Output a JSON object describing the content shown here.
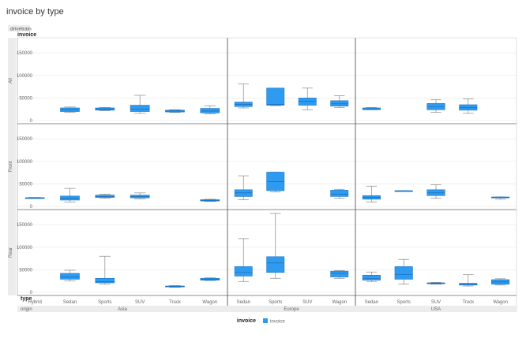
{
  "title": "invoice by type",
  "legend": {
    "title": "invoice",
    "items": [
      {
        "label": "invoice",
        "color": "#2e9bf0"
      }
    ]
  },
  "labels": {
    "row_var": "drivetrain",
    "col_var": "origin",
    "y_axis": "invoice",
    "x_axis": "type"
  },
  "colors": {
    "box": "#2e9bf0",
    "box_stroke": "#1b76c4",
    "grid": "#e8e8e8",
    "band": "#ececec"
  },
  "chart_data": {
    "type": "boxplot",
    "title": "invoice by type",
    "ylabel": "invoice",
    "xlabel": "type",
    "ylim": [
      0,
      180000
    ],
    "yticks": [
      0,
      50000,
      100000,
      150000
    ],
    "grid": true,
    "legend_position": "bottom",
    "row_facets": [
      "All",
      "Front",
      "Rear"
    ],
    "column_facets": [
      {
        "name": "Asia",
        "categories": [
          "Hybrid",
          "Sedan",
          "Sports",
          "SUV",
          "Truck",
          "Wagon"
        ]
      },
      {
        "name": "Europe",
        "categories": [
          "Sedan",
          "Sports",
          "SUV",
          "Wagon"
        ]
      },
      {
        "name": "USA",
        "categories": [
          "Sedan",
          "Sports",
          "SUV",
          "Truck",
          "Wagon"
        ]
      }
    ],
    "boxes": [
      {
        "row": "All",
        "origin": "Asia",
        "type": "Sedan",
        "min": 18000,
        "q1": 20000,
        "median": 24000,
        "q3": 28000,
        "max": 30000
      },
      {
        "row": "All",
        "origin": "Asia",
        "type": "Sports",
        "min": 22000,
        "q1": 23000,
        "median": 25000,
        "q3": 28000,
        "max": 29000
      },
      {
        "row": "All",
        "origin": "Asia",
        "type": "SUV",
        "min": 16000,
        "q1": 20000,
        "median": 25000,
        "q3": 34000,
        "max": 56000
      },
      {
        "row": "All",
        "origin": "Asia",
        "type": "Truck",
        "min": 18000,
        "q1": 19000,
        "median": 21000,
        "q3": 23000,
        "max": 24000
      },
      {
        "row": "All",
        "origin": "Asia",
        "type": "Wagon",
        "min": 15000,
        "q1": 17000,
        "median": 21000,
        "q3": 27000,
        "max": 33000
      },
      {
        "row": "All",
        "origin": "Europe",
        "type": "Sedan",
        "min": 28000,
        "q1": 31000,
        "median": 36000,
        "q3": 41000,
        "max": 81000
      },
      {
        "row": "All",
        "origin": "Europe",
        "type": "Sports",
        "min": 33000,
        "q1": 34000,
        "median": 36000,
        "q3": 72000,
        "max": 72000
      },
      {
        "row": "All",
        "origin": "Europe",
        "type": "SUV",
        "min": 24000,
        "q1": 34000,
        "median": 43000,
        "q3": 50000,
        "max": 72000
      },
      {
        "row": "All",
        "origin": "Europe",
        "type": "Wagon",
        "min": 29000,
        "q1": 32000,
        "median": 37000,
        "q3": 44000,
        "max": 55000
      },
      {
        "row": "All",
        "origin": "USA",
        "type": "Sedan",
        "min": 24000,
        "q1": 24000,
        "median": 26000,
        "q3": 28000,
        "max": 29000
      },
      {
        "row": "All",
        "origin": "USA",
        "type": "SUV",
        "min": 18000,
        "q1": 24000,
        "median": 31000,
        "q3": 38000,
        "max": 46000
      },
      {
        "row": "All",
        "origin": "USA",
        "type": "Truck",
        "min": 16000,
        "q1": 23000,
        "median": 29000,
        "q3": 35000,
        "max": 48000
      },
      {
        "row": "Front",
        "origin": "Asia",
        "type": "Hybrid",
        "min": 18000,
        "q1": 18500,
        "median": 19000,
        "q3": 19500,
        "max": 20000
      },
      {
        "row": "Front",
        "origin": "Asia",
        "type": "Sedan",
        "min": 10000,
        "q1": 14000,
        "median": 18000,
        "q3": 23000,
        "max": 40000
      },
      {
        "row": "Front",
        "origin": "Asia",
        "type": "Sports",
        "min": 18000,
        "q1": 20000,
        "median": 22000,
        "q3": 25000,
        "max": 27000
      },
      {
        "row": "Front",
        "origin": "Asia",
        "type": "SUV",
        "min": 17000,
        "q1": 19000,
        "median": 22000,
        "q3": 25000,
        "max": 30000
      },
      {
        "row": "Front",
        "origin": "Asia",
        "type": "Wagon",
        "min": 11000,
        "q1": 12000,
        "median": 13000,
        "q3": 15000,
        "max": 16000
      },
      {
        "row": "Front",
        "origin": "Europe",
        "type": "Sedan",
        "min": 15000,
        "q1": 22000,
        "median": 30000,
        "q3": 37000,
        "max": 68000
      },
      {
        "row": "Front",
        "origin": "Europe",
        "type": "Sports",
        "min": 32000,
        "q1": 35000,
        "median": 55000,
        "q3": 76000,
        "max": 76000
      },
      {
        "row": "Front",
        "origin": "Europe",
        "type": "Wagon",
        "min": 18000,
        "q1": 22000,
        "median": 27000,
        "q3": 36000,
        "max": 38000
      },
      {
        "row": "Front",
        "origin": "USA",
        "type": "Sedan",
        "min": 10000,
        "q1": 16000,
        "median": 20000,
        "q3": 24000,
        "max": 45000
      },
      {
        "row": "Front",
        "origin": "USA",
        "type": "Sports",
        "min": 34000,
        "q1": 34000,
        "median": 34500,
        "q3": 35000,
        "max": 35000
      },
      {
        "row": "Front",
        "origin": "USA",
        "type": "SUV",
        "min": 18000,
        "q1": 24000,
        "median": 30000,
        "q3": 37000,
        "max": 48000
      },
      {
        "row": "Front",
        "origin": "USA",
        "type": "Wagon",
        "min": 16000,
        "q1": 19000,
        "median": 20000,
        "q3": 21000,
        "max": 21000
      },
      {
        "row": "Rear",
        "origin": "Asia",
        "type": "Sedan",
        "min": 25000,
        "q1": 29000,
        "median": 34000,
        "q3": 42000,
        "max": 49000
      },
      {
        "row": "Rear",
        "origin": "Asia",
        "type": "Sports",
        "min": 18000,
        "q1": 21000,
        "median": 24000,
        "q3": 31000,
        "max": 80000
      },
      {
        "row": "Rear",
        "origin": "Asia",
        "type": "Truck",
        "min": 11000,
        "q1": 12000,
        "median": 13000,
        "q3": 14000,
        "max": 15000
      },
      {
        "row": "Rear",
        "origin": "Asia",
        "type": "Wagon",
        "min": 26000,
        "q1": 27000,
        "median": 29000,
        "q3": 31000,
        "max": 32000
      },
      {
        "row": "Rear",
        "origin": "Europe",
        "type": "Sedan",
        "min": 24000,
        "q1": 36000,
        "median": 45000,
        "q3": 57000,
        "max": 119000
      },
      {
        "row": "Rear",
        "origin": "Europe",
        "type": "Sports",
        "min": 31000,
        "q1": 44000,
        "median": 65000,
        "q3": 79000,
        "max": 175000
      },
      {
        "row": "Rear",
        "origin": "Europe",
        "type": "Wagon",
        "min": 31000,
        "q1": 34000,
        "median": 42000,
        "q3": 47000,
        "max": 48000
      },
      {
        "row": "Rear",
        "origin": "USA",
        "type": "Sedan",
        "min": 24000,
        "q1": 27000,
        "median": 31000,
        "q3": 38000,
        "max": 45000
      },
      {
        "row": "Rear",
        "origin": "USA",
        "type": "Sports",
        "min": 18000,
        "q1": 29000,
        "median": 39000,
        "q3": 57000,
        "max": 73000
      },
      {
        "row": "Rear",
        "origin": "USA",
        "type": "SUV",
        "min": 18000,
        "q1": 19000,
        "median": 20000,
        "q3": 21000,
        "max": 22000
      },
      {
        "row": "Rear",
        "origin": "USA",
        "type": "Truck",
        "min": 14000,
        "q1": 16000,
        "median": 18000,
        "q3": 20000,
        "max": 39000
      },
      {
        "row": "Rear",
        "origin": "USA",
        "type": "Wagon",
        "min": 16000,
        "q1": 18000,
        "median": 23000,
        "q3": 28000,
        "max": 30000
      }
    ]
  }
}
